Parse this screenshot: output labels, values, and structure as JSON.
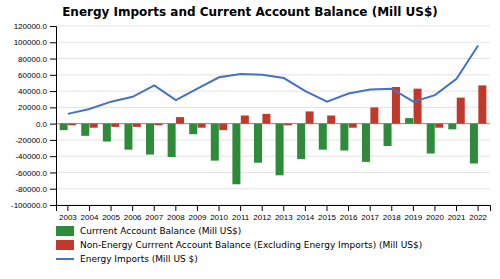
{
  "chart_data": {
    "type": "bar",
    "title": "Energy Imports and Current Account Balance (Mill US$)",
    "categories": [
      "2003",
      "2004",
      "2005",
      "2006",
      "2007",
      "2008",
      "2009",
      "2010",
      "2011",
      "2012",
      "2013",
      "2014",
      "2015",
      "2016",
      "2017",
      "2018",
      "2019",
      "2020",
      "2021",
      "2022"
    ],
    "series": [
      {
        "name": "Currrent Account Balance (Mill US$)",
        "color": "#2E8B3A",
        "type": "bar",
        "values": [
          -8000,
          -15000,
          -22000,
          -32000,
          -38000,
          -41000,
          -13000,
          -45500,
          -74500,
          -48000,
          -63500,
          -43500,
          -32000,
          -33000,
          -47000,
          -27500,
          6800,
          -36700,
          -7000,
          -49000
        ]
      },
      {
        "name": "Non-Energy Currrent Account Balance (Excluding Energy Imports) (Mill US$)",
        "color": "#C0392B",
        "type": "bar",
        "values": [
          -2000,
          -5000,
          -4000,
          -4000,
          -2000,
          8000,
          -5000,
          -8000,
          10000,
          12000,
          -2000,
          15000,
          10000,
          -5000,
          20000,
          45000,
          43000,
          -5000,
          32000,
          47000
        ]
      },
      {
        "name": "Energy Imports (Mill US $)",
        "color": "#4472C4",
        "type": "line",
        "values": [
          12000,
          18000,
          27000,
          33000,
          47000,
          29000,
          43000,
          57000,
          61000,
          60000,
          56000,
          40000,
          27000,
          37000,
          42000,
          43000,
          27000,
          35000,
          55000,
          96000
        ]
      }
    ],
    "ylim": [
      -100000,
      120000
    ],
    "yticks": [
      {
        "value": -100000,
        "label": "-100000.0"
      },
      {
        "value": -80000,
        "label": "-80000.0"
      },
      {
        "value": -60000,
        "label": "-60000.0"
      },
      {
        "value": -40000,
        "label": "-40000.0"
      },
      {
        "value": -20000,
        "label": "-20000.0"
      },
      {
        "value": 0,
        "label": "0.0"
      },
      {
        "value": 20000,
        "label": "20000.0"
      },
      {
        "value": 40000,
        "label": "40000.0"
      },
      {
        "value": 60000,
        "label": "60000.0"
      },
      {
        "value": 80000,
        "label": "80000.0"
      },
      {
        "value": 100000,
        "label": "100000.0"
      },
      {
        "value": 120000,
        "label": "120000.0"
      }
    ],
    "grid": true,
    "legend": "bottom"
  }
}
